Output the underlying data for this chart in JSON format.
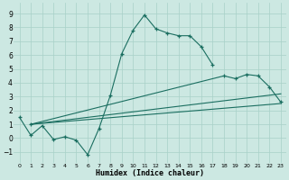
{
  "xlabel": "Humidex (Indice chaleur)",
  "bg_color": "#cce8e2",
  "grid_color": "#a8d0c8",
  "line_color": "#1a6e60",
  "xlim": [
    -0.5,
    23.5
  ],
  "ylim": [
    -1.8,
    9.8
  ],
  "xticks": [
    0,
    1,
    2,
    3,
    4,
    5,
    6,
    7,
    8,
    9,
    10,
    11,
    12,
    13,
    14,
    15,
    16,
    17,
    18,
    19,
    20,
    21,
    22,
    23
  ],
  "yticks": [
    -1,
    0,
    1,
    2,
    3,
    4,
    5,
    6,
    7,
    8,
    9
  ],
  "curve1_x": [
    0,
    1,
    2,
    3,
    4,
    5,
    6,
    7,
    8,
    9,
    10,
    11,
    12,
    13,
    14,
    15,
    16,
    17
  ],
  "curve1_y": [
    1.5,
    0.2,
    0.9,
    -0.1,
    0.1,
    -0.15,
    -1.2,
    0.7,
    3.1,
    6.1,
    7.8,
    8.9,
    7.9,
    7.6,
    7.4,
    7.4,
    6.6,
    5.3
  ],
  "curve2_x": [
    1,
    18,
    19,
    20,
    21,
    22,
    23
  ],
  "curve2_y": [
    1.0,
    4.5,
    4.3,
    4.6,
    4.5,
    3.7,
    2.6
  ],
  "line3_x": [
    1,
    23
  ],
  "line3_y": [
    1.0,
    2.5
  ],
  "line4_x": [
    1,
    23
  ],
  "line4_y": [
    1.0,
    3.2
  ]
}
